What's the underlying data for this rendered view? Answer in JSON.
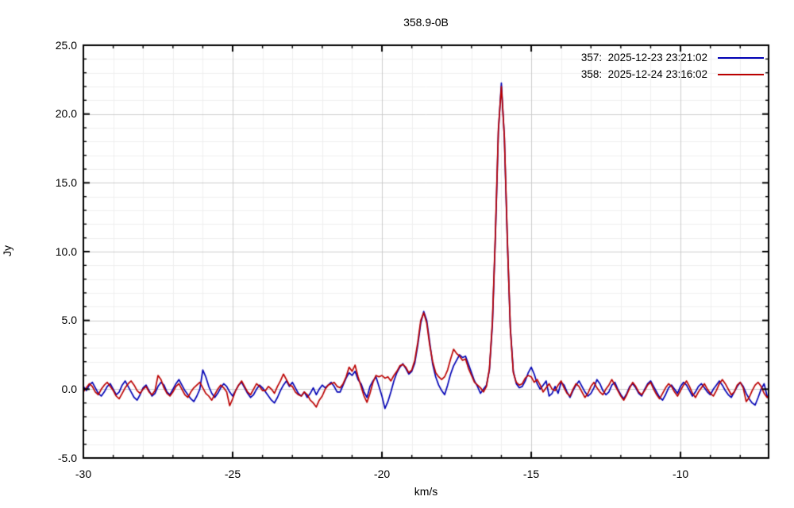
{
  "title": "358.9-0B",
  "colors": {
    "series_357": "#0000b4",
    "series_358": "#bb0000",
    "grid_minor": "#efefef",
    "grid_major": "#cccccc",
    "frame": "#000000",
    "background": "#ffffff"
  },
  "chart_data": {
    "type": "line",
    "title": "358.9-0B",
    "xlabel": "km/s",
    "ylabel": "Jy",
    "xlim": [
      -30.0,
      -7.05
    ],
    "ylim": [
      -5.0,
      25.0
    ],
    "grid": "on-minor-and-major",
    "legend_position": "top-right-inside",
    "x_start": -30.0,
    "x_step": 0.1,
    "xticks": {
      "values": [
        -30,
        -25,
        -20,
        -15,
        -10
      ],
      "labels": [
        "-30",
        "-25",
        "-20",
        "-15",
        "-10"
      ],
      "minor_step": 1
    },
    "yticks": {
      "values": [
        -5,
        0,
        5,
        10,
        15,
        20,
        25
      ],
      "labels": [
        "-5.0",
        "0.0",
        "5.0",
        "10.0",
        "15.0",
        "20.0",
        "25.0"
      ],
      "minor_step": 1
    },
    "series": [
      {
        "name": "357",
        "label": "357:  2025-12-23 23:21:02",
        "color": "#0000b4",
        "values": [
          0.2,
          -0.1,
          0.3,
          0.5,
          0.1,
          -0.3,
          -0.5,
          -0.2,
          0.2,
          0.4,
          0.0,
          -0.4,
          -0.2,
          0.3,
          0.6,
          0.2,
          -0.2,
          -0.6,
          -0.8,
          -0.4,
          0.1,
          0.3,
          -0.1,
          -0.5,
          -0.3,
          0.2,
          0.5,
          0.3,
          -0.2,
          -0.4,
          0.0,
          0.4,
          0.7,
          0.3,
          -0.1,
          -0.4,
          -0.7,
          -0.9,
          -0.5,
          0.0,
          1.4,
          0.9,
          0.2,
          -0.3,
          -0.6,
          -0.3,
          0.1,
          0.4,
          0.2,
          -0.2,
          -0.5,
          -0.1,
          0.3,
          0.5,
          0.1,
          -0.3,
          -0.6,
          -0.4,
          0.0,
          0.3,
          0.1,
          -0.2,
          -0.5,
          -0.8,
          -1.0,
          -0.6,
          -0.1,
          0.3,
          0.6,
          0.2,
          0.5,
          0.1,
          -0.3,
          -0.5,
          -0.2,
          -0.6,
          -0.3,
          0.1,
          -0.4,
          0.0,
          0.3,
          0.1,
          0.3,
          0.5,
          0.2,
          -0.2,
          -0.2,
          0.3,
          0.8,
          1.2,
          1.0,
          1.3,
          0.7,
          0.4,
          -0.2,
          -0.6,
          0.2,
          0.6,
          0.9,
          0.2,
          -0.5,
          -1.4,
          -0.9,
          -0.2,
          0.6,
          1.2,
          1.6,
          1.85,
          1.5,
          1.1,
          1.3,
          1.9,
          3.2,
          4.8,
          5.65,
          5.0,
          3.4,
          1.8,
          0.9,
          0.3,
          -0.1,
          -0.4,
          0.3,
          1.1,
          1.7,
          2.1,
          2.5,
          2.3,
          2.4,
          1.8,
          1.2,
          0.6,
          0.2,
          -0.3,
          0.0,
          0.3,
          1.4,
          4.7,
          11.1,
          18.7,
          22.25,
          18.3,
          10.8,
          4.5,
          1.3,
          0.4,
          0.1,
          0.2,
          0.6,
          1.2,
          1.6,
          1.1,
          0.4,
          0.0,
          0.3,
          0.6,
          -0.5,
          -0.3,
          0.2,
          -0.3,
          0.5,
          0.3,
          -0.2,
          -0.6,
          -0.1,
          0.3,
          0.6,
          0.2,
          -0.2,
          -0.5,
          -0.3,
          0.1,
          0.7,
          0.4,
          -0.1,
          -0.4,
          -0.2,
          0.3,
          0.5,
          0.0,
          -0.4,
          -0.7,
          -0.3,
          0.2,
          0.4,
          0.1,
          -0.3,
          -0.5,
          0.0,
          0.4,
          0.6,
          0.2,
          -0.2,
          -0.6,
          -0.8,
          -0.4,
          0.1,
          0.3,
          0.0,
          -0.3,
          0.2,
          0.5,
          0.3,
          -0.1,
          -0.5,
          -0.2,
          0.2,
          0.4,
          0.1,
          -0.2,
          -0.4,
          0.0,
          0.3,
          0.6,
          0.3,
          -0.1,
          -0.4,
          -0.6,
          -0.2,
          0.2,
          0.5,
          0.2,
          -0.3,
          -0.7,
          -1.0,
          -1.15,
          -0.6,
          0.0,
          0.4,
          -0.5,
          -0.9
        ]
      },
      {
        "name": "358",
        "label": "358:  2025-12-24 23:16:02",
        "color": "#bb0000",
        "values": [
          -0.2,
          0.1,
          0.4,
          0.2,
          -0.2,
          -0.4,
          0.0,
          0.3,
          0.5,
          0.2,
          -0.1,
          -0.5,
          -0.7,
          -0.3,
          0.1,
          0.4,
          0.6,
          0.3,
          -0.1,
          -0.3,
          0.0,
          0.2,
          -0.2,
          -0.4,
          -0.1,
          1.0,
          0.7,
          0.1,
          -0.3,
          -0.5,
          -0.2,
          0.2,
          0.4,
          0.0,
          -0.4,
          -0.6,
          -0.2,
          0.1,
          0.3,
          0.5,
          0.1,
          -0.3,
          -0.5,
          -0.8,
          -0.4,
          0.0,
          0.3,
          0.1,
          -0.2,
          -1.2,
          -0.7,
          -0.1,
          0.3,
          0.6,
          0.2,
          -0.2,
          -0.4,
          0.0,
          0.4,
          0.2,
          -0.1,
          -0.1,
          0.2,
          0.0,
          -0.3,
          0.2,
          0.6,
          1.1,
          0.7,
          0.3,
          0.2,
          -0.2,
          -0.4,
          -0.5,
          -0.2,
          -0.4,
          -0.8,
          -1.0,
          -1.3,
          -0.8,
          -0.5,
          0.0,
          0.3,
          0.4,
          0.5,
          0.2,
          0.1,
          0.4,
          0.9,
          1.6,
          1.3,
          1.75,
          0.9,
          0.2,
          -0.5,
          -0.95,
          -0.3,
          0.5,
          1.0,
          0.9,
          1.0,
          0.8,
          0.9,
          0.6,
          1.0,
          1.3,
          1.7,
          1.8,
          1.6,
          1.2,
          1.4,
          2.1,
          3.4,
          5.0,
          5.55,
          4.8,
          3.2,
          2.0,
          1.2,
          0.9,
          0.7,
          0.9,
          1.4,
          2.2,
          2.9,
          2.6,
          2.4,
          2.1,
          2.2,
          1.5,
          1.0,
          0.5,
          0.3,
          0.1,
          -0.2,
          0.2,
          1.5,
          4.9,
          11.3,
          18.9,
          22.0,
          18.4,
          11.0,
          4.4,
          1.2,
          0.5,
          0.3,
          0.4,
          0.8,
          1.0,
          0.9,
          0.5,
          0.7,
          0.3,
          -0.2,
          0.1,
          0.4,
          0.0,
          -0.1,
          0.3,
          0.6,
          0.1,
          -0.3,
          -0.5,
          0.0,
          0.4,
          0.2,
          -0.2,
          -0.6,
          -0.3,
          0.2,
          0.5,
          0.1,
          -0.2,
          -0.4,
          0.0,
          0.3,
          0.7,
          0.3,
          -0.1,
          -0.5,
          -0.8,
          -0.4,
          0.1,
          0.5,
          0.2,
          -0.2,
          -0.4,
          -0.1,
          0.3,
          0.5,
          0.0,
          -0.4,
          -0.7,
          -0.3,
          0.1,
          0.4,
          0.2,
          -0.2,
          -0.5,
          -0.1,
          0.3,
          0.6,
          0.2,
          -0.3,
          -0.6,
          -0.2,
          0.1,
          0.4,
          0.0,
          -0.3,
          -0.5,
          -0.1,
          0.4,
          0.7,
          0.4,
          0.0,
          -0.4,
          -0.2,
          0.3,
          0.5,
          0.1,
          -0.9,
          -0.6,
          -0.1,
          0.3,
          0.5,
          0.2,
          -0.3,
          -0.6,
          -0.4
        ]
      }
    ]
  }
}
